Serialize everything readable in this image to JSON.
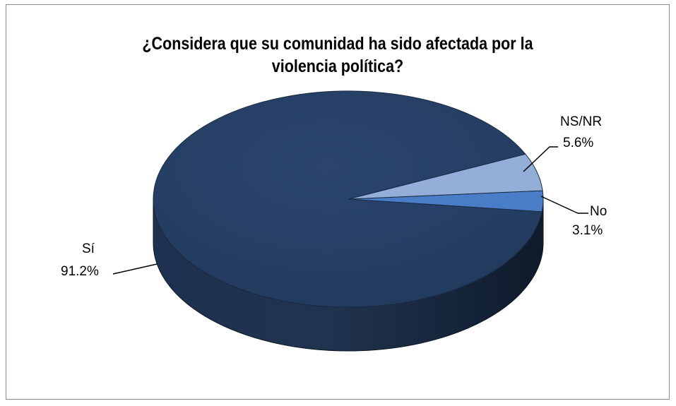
{
  "chart_data": {
    "type": "pie",
    "title_lines": [
      "¿Considera que su comunidad ha sido afectada por la",
      "violencia política?"
    ],
    "slices": [
      {
        "name": "Sí",
        "value": 91.2,
        "label": "91.2%",
        "color": "#243c5e"
      },
      {
        "name": "No",
        "value": 3.1,
        "label": "3.1%",
        "color": "#4a7dc8"
      },
      {
        "name": "NS/NR",
        "value": 5.6,
        "label": "5.6%",
        "color": "#93afd9"
      }
    ],
    "three_d": true,
    "legend": "none"
  }
}
